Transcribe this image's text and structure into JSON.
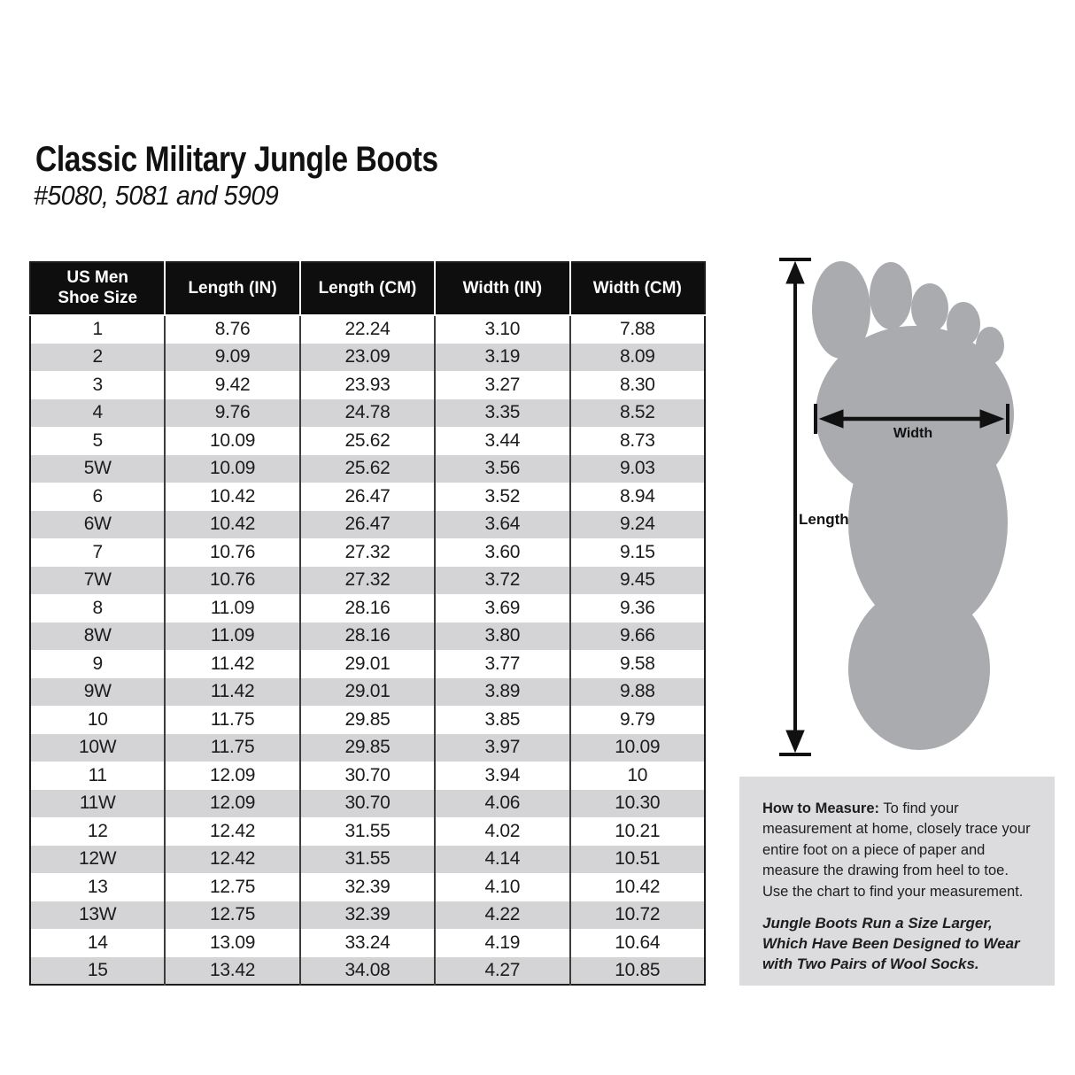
{
  "page": {
    "title": "Classic Military Jungle Boots",
    "subtitle": "#5080, 5081 and 5909"
  },
  "table_header": {
    "size_col_line1": "US Men",
    "size_col_line2": "Shoe Size",
    "length_in": "Length (IN)",
    "length_cm": "Length (CM)",
    "width_in": "Width (IN)",
    "width_cm": "Width (CM)"
  },
  "chart_data": {
    "type": "table",
    "title": "Classic Military Jungle Boots size chart",
    "columns": [
      "US Men Shoe Size",
      "Length (IN)",
      "Length (CM)",
      "Width (IN)",
      "Width (CM)"
    ],
    "rows": [
      [
        "1",
        "8.76",
        "22.24",
        "3.10",
        "7.88"
      ],
      [
        "2",
        "9.09",
        "23.09",
        "3.19",
        "8.09"
      ],
      [
        "3",
        "9.42",
        "23.93",
        "3.27",
        "8.30"
      ],
      [
        "4",
        "9.76",
        "24.78",
        "3.35",
        "8.52"
      ],
      [
        "5",
        "10.09",
        "25.62",
        "3.44",
        "8.73"
      ],
      [
        "5W",
        "10.09",
        "25.62",
        "3.56",
        "9.03"
      ],
      [
        "6",
        "10.42",
        "26.47",
        "3.52",
        "8.94"
      ],
      [
        "6W",
        "10.42",
        "26.47",
        "3.64",
        "9.24"
      ],
      [
        "7",
        "10.76",
        "27.32",
        "3.60",
        "9.15"
      ],
      [
        "7W",
        "10.76",
        "27.32",
        "3.72",
        "9.45"
      ],
      [
        "8",
        "11.09",
        "28.16",
        "3.69",
        "9.36"
      ],
      [
        "8W",
        "11.09",
        "28.16",
        "3.80",
        "9.66"
      ],
      [
        "9",
        "11.42",
        "29.01",
        "3.77",
        "9.58"
      ],
      [
        "9W",
        "11.42",
        "29.01",
        "3.89",
        "9.88"
      ],
      [
        "10",
        "11.75",
        "29.85",
        "3.85",
        "9.79"
      ],
      [
        "10W",
        "11.75",
        "29.85",
        "3.97",
        "10.09"
      ],
      [
        "11",
        "12.09",
        "30.70",
        "3.94",
        "10"
      ],
      [
        "11W",
        "12.09",
        "30.70",
        "4.06",
        "10.30"
      ],
      [
        "12",
        "12.42",
        "31.55",
        "4.02",
        "10.21"
      ],
      [
        "12W",
        "12.42",
        "31.55",
        "4.14",
        "10.51"
      ],
      [
        "13",
        "12.75",
        "32.39",
        "4.10",
        "10.42"
      ],
      [
        "13W",
        "12.75",
        "32.39",
        "4.22",
        "10.72"
      ],
      [
        "14",
        "13.09",
        "33.24",
        "4.19",
        "10.64"
      ],
      [
        "15",
        "13.42",
        "34.08",
        "4.27",
        "10.85"
      ]
    ]
  },
  "diagram": {
    "width_label": "Width",
    "length_label": "Length"
  },
  "measure_box": {
    "heading": "How to Measure:",
    "body": " To find your measurement at home, closely trace your entire foot on a piece of paper and measure the drawing from heel to toe. Use the chart to find your measurement.",
    "note": "Jungle Boots Run a Size Larger, Which Have Been Designed to Wear with Two Pairs of Wool Socks."
  },
  "colors": {
    "header_bg": "#0e0e0e",
    "header_text": "#ffffff",
    "alt_row_bg": "#d4d4d6",
    "foot_fill": "#a9abae",
    "measure_box_bg": "#dcdcde",
    "arrow": "#111111",
    "text": "#1a1a1a"
  }
}
